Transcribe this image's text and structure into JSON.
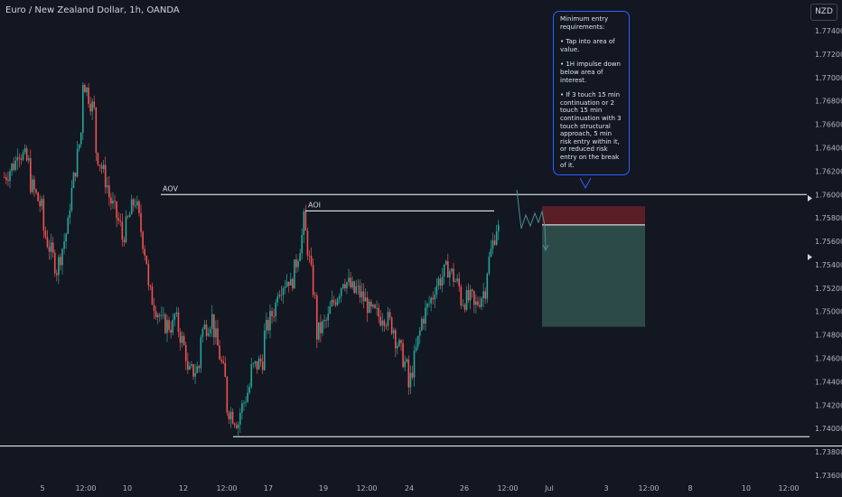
{
  "header": {
    "symbol_title": "Euro / New Zealand Dollar, 1h, OANDA",
    "currency": "NZD"
  },
  "callout": {
    "heading": "Minimum entry requirements:",
    "points": [
      "• Tap into area of value.",
      "• 1H impulse down below area of interest.",
      "• If 3 touch 15 min continuation or 2 touch 15 min continuation with 3 touch structural approach, 5 min risk entry within it, or reduced risk entry on the break of it."
    ]
  },
  "colors": {
    "background": "#131722",
    "up_candle": "#26a69a",
    "down_candle": "#ef5350",
    "level_line": "#ffffff",
    "stop_zone": "#5a1e27",
    "target_zone": "#2c4a48",
    "callout_border": "#2962ff",
    "projection": "#4f8f8f"
  },
  "chart_data": {
    "type": "candlestick",
    "title": "Euro / New Zealand Dollar, 1h, OANDA",
    "y_axis": {
      "side": "right",
      "range": [
        1.736,
        1.776
      ],
      "ticks": [
        "1.77400",
        "1.77200",
        "1.77000",
        "1.76800",
        "1.76600",
        "1.76400",
        "1.76200",
        "1.76000",
        "1.75800",
        "1.75600",
        "1.75400",
        "1.75200",
        "1.75000",
        "1.74800",
        "1.74600",
        "1.74400",
        "1.74200",
        "1.74000",
        "1.73800",
        "1.73600"
      ]
    },
    "x_axis": {
      "ticks": [
        "5",
        "12:00",
        "10",
        "12",
        "12:00",
        "17",
        "19",
        "12:00",
        "24",
        "26",
        "12:00",
        "Jul",
        "3",
        "12:00",
        "8",
        "10",
        "12:00"
      ]
    },
    "price_path": [
      [
        1.7615,
        1.762
      ],
      [
        1.764,
        1.7638
      ],
      [
        1.761,
        1.76
      ],
      [
        1.757,
        1.754
      ],
      [
        1.7535,
        1.7565
      ],
      [
        1.759,
        1.762
      ],
      [
        1.77,
        1.7695
      ],
      [
        1.764,
        1.761
      ],
      [
        1.76,
        1.758
      ],
      [
        1.756,
        1.759
      ],
      [
        1.76,
        1.756
      ],
      [
        1.752,
        1.75
      ],
      [
        1.749,
        1.7475
      ],
      [
        1.75,
        1.748
      ],
      [
        1.7445,
        1.7425
      ],
      [
        1.748,
        1.75
      ],
      [
        1.749,
        1.746
      ],
      [
        1.742,
        1.74
      ],
      [
        1.741,
        1.743
      ],
      [
        1.745,
        1.744
      ],
      [
        1.748,
        1.75
      ],
      [
        1.752,
        1.754
      ],
      [
        1.752,
        1.756
      ],
      [
        1.758,
        1.752
      ],
      [
        1.748,
        1.749
      ],
      [
        1.75,
        1.752
      ],
      [
        1.753,
        1.751
      ],
      [
        1.752,
        1.751
      ],
      [
        1.75,
        1.749
      ],
      [
        1.75,
        1.749
      ],
      [
        1.748,
        1.747
      ],
      [
        1.743,
        1.748
      ],
      [
        1.749,
        1.751
      ],
      [
        1.752,
        1.753
      ],
      [
        1.754,
        1.753
      ],
      [
        1.751,
        1.752
      ],
      [
        1.75,
        1.751
      ],
      [
        1.753,
        1.759
      ],
      [
        1.757,
        1.7565
      ]
    ],
    "levels": [
      {
        "label": "AOV",
        "value": 1.76
      },
      {
        "label": "AOI",
        "value": 1.7586
      },
      {
        "label": "",
        "value": 1.7393
      },
      {
        "label": "",
        "value": 1.7385
      }
    ],
    "trade_box": {
      "stop_top": 1.759,
      "entry": 1.7574,
      "target": 1.7487
    }
  }
}
